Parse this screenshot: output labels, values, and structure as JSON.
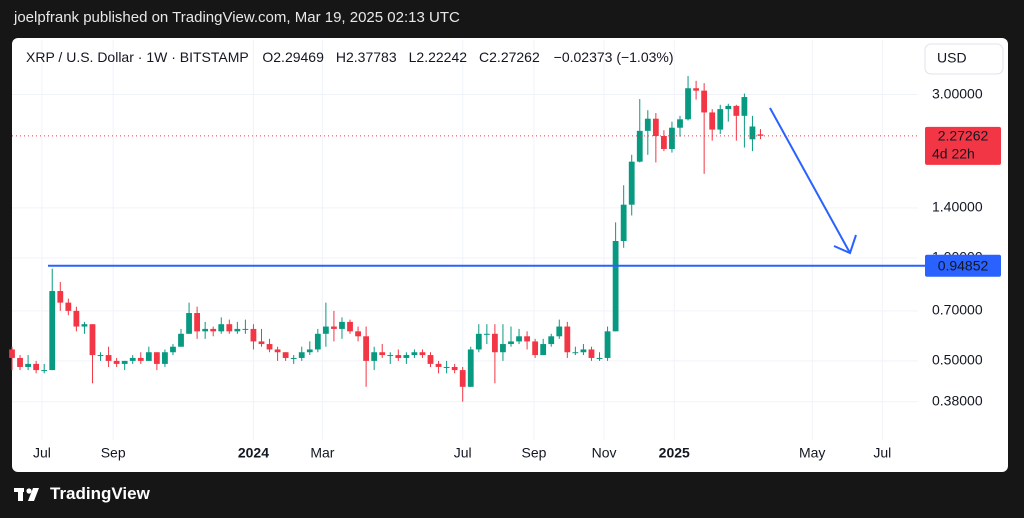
{
  "header": {
    "title": "joelpfrank published on TradingView.com, Mar 19, 2025 02:13 UTC"
  },
  "footer": {
    "brand": "TradingView"
  },
  "chart_data": {
    "type": "candlestick",
    "symbol": "XRP / U.S. Dollar · 1W · BITSTAMP",
    "ohlc_labels": [
      "O",
      "H",
      "L",
      "C"
    ],
    "change": "−0.02373 (−1.03%)",
    "currency": "USD",
    "countdown": "4d 22h",
    "log_scale": true,
    "grid": true,
    "colors": {
      "up": "#089981",
      "down": "#f23645"
    },
    "hline": {
      "value": 0.94852,
      "color": "#2962ff"
    },
    "xlim": [
      "2023-06-05",
      "2025-08-01"
    ],
    "xticks": [
      {
        "value": "2023-07-01",
        "label": "Jul"
      },
      {
        "value": "2023-09-01",
        "label": "Sep"
      },
      {
        "value": "2024-01-01",
        "label": "2024"
      },
      {
        "value": "2024-03-01",
        "label": "Mar"
      },
      {
        "value": "2024-07-01",
        "label": "Jul"
      },
      {
        "value": "2024-09-01",
        "label": "Sep"
      },
      {
        "value": "2024-11-01",
        "label": "Nov"
      },
      {
        "value": "2025-01-01",
        "label": "2025"
      },
      {
        "value": "2025-05-01",
        "label": "May"
      },
      {
        "value": "2025-07-01",
        "label": "Jul"
      }
    ],
    "ylim": [
      0.24,
      4.33
    ],
    "yticks": [
      {
        "value": 3,
        "label": "3.00000"
      },
      {
        "value": 1.4,
        "label": "1.40000"
      },
      {
        "value": 1,
        "label": "1.00000"
      },
      {
        "value": 0.7,
        "label": "0.70000"
      },
      {
        "value": 0.5,
        "label": "0.50000"
      },
      {
        "value": 0.38,
        "label": "0.38000"
      }
    ],
    "x": [
      "2023-06-05",
      "2023-06-12",
      "2023-06-19",
      "2023-06-26",
      "2023-07-03",
      "2023-07-10",
      "2023-07-17",
      "2023-07-24",
      "2023-07-31",
      "2023-08-07",
      "2023-08-14",
      "2023-08-21",
      "2023-08-28",
      "2023-09-04",
      "2023-09-11",
      "2023-09-18",
      "2023-09-25",
      "2023-10-02",
      "2023-10-09",
      "2023-10-16",
      "2023-10-23",
      "2023-10-30",
      "2023-11-06",
      "2023-11-13",
      "2023-11-20",
      "2023-11-27",
      "2023-12-04",
      "2023-12-11",
      "2023-12-18",
      "2023-12-25",
      "2024-01-01",
      "2024-01-08",
      "2024-01-15",
      "2024-01-22",
      "2024-01-29",
      "2024-02-05",
      "2024-02-12",
      "2024-02-19",
      "2024-02-26",
      "2024-03-04",
      "2024-03-11",
      "2024-03-18",
      "2024-03-25",
      "2024-04-01",
      "2024-04-08",
      "2024-04-15",
      "2024-04-22",
      "2024-04-29",
      "2024-05-06",
      "2024-05-13",
      "2024-05-20",
      "2024-05-27",
      "2024-06-03",
      "2024-06-10",
      "2024-06-17",
      "2024-06-24",
      "2024-07-01",
      "2024-07-08",
      "2024-07-15",
      "2024-07-22",
      "2024-07-29",
      "2024-08-05",
      "2024-08-12",
      "2024-08-19",
      "2024-08-26",
      "2024-09-02",
      "2024-09-09",
      "2024-09-16",
      "2024-09-23",
      "2024-09-30",
      "2024-10-07",
      "2024-10-14",
      "2024-10-21",
      "2024-10-28",
      "2024-11-04",
      "2024-11-11",
      "2024-11-18",
      "2024-11-25",
      "2024-12-02",
      "2024-12-09",
      "2024-12-16",
      "2024-12-23",
      "2024-12-30",
      "2025-01-06",
      "2025-01-13",
      "2025-01-20",
      "2025-01-27",
      "2025-02-03",
      "2025-02-10",
      "2025-02-17",
      "2025-02-24",
      "2025-03-03",
      "2025-03-10",
      "2025-03-17"
    ],
    "candles": [
      [
        0.54,
        0.55,
        0.47,
        0.51
      ],
      [
        0.51,
        0.52,
        0.47,
        0.48
      ],
      [
        0.48,
        0.52,
        0.47,
        0.49
      ],
      [
        0.49,
        0.5,
        0.46,
        0.47
      ],
      [
        0.47,
        0.49,
        0.46,
        0.47
      ],
      [
        0.47,
        0.93,
        0.47,
        0.8
      ],
      [
        0.8,
        0.85,
        0.7,
        0.74
      ],
      [
        0.74,
        0.76,
        0.68,
        0.7
      ],
      [
        0.7,
        0.72,
        0.61,
        0.63
      ],
      [
        0.63,
        0.65,
        0.6,
        0.64
      ],
      [
        0.64,
        0.64,
        0.43,
        0.52
      ],
      [
        0.52,
        0.53,
        0.5,
        0.52
      ],
      [
        0.52,
        0.55,
        0.48,
        0.5
      ],
      [
        0.5,
        0.51,
        0.48,
        0.49
      ],
      [
        0.49,
        0.5,
        0.47,
        0.5
      ],
      [
        0.5,
        0.52,
        0.49,
        0.51
      ],
      [
        0.51,
        0.53,
        0.49,
        0.5
      ],
      [
        0.5,
        0.55,
        0.5,
        0.53
      ],
      [
        0.53,
        0.53,
        0.47,
        0.49
      ],
      [
        0.49,
        0.54,
        0.48,
        0.53
      ],
      [
        0.53,
        0.56,
        0.52,
        0.55
      ],
      [
        0.55,
        0.62,
        0.55,
        0.6
      ],
      [
        0.6,
        0.74,
        0.6,
        0.69
      ],
      [
        0.69,
        0.72,
        0.58,
        0.61
      ],
      [
        0.61,
        0.65,
        0.58,
        0.62
      ],
      [
        0.62,
        0.63,
        0.59,
        0.61
      ],
      [
        0.61,
        0.67,
        0.6,
        0.64
      ],
      [
        0.64,
        0.66,
        0.6,
        0.61
      ],
      [
        0.61,
        0.65,
        0.6,
        0.62
      ],
      [
        0.62,
        0.66,
        0.6,
        0.62
      ],
      [
        0.62,
        0.64,
        0.54,
        0.57
      ],
      [
        0.57,
        0.62,
        0.55,
        0.56
      ],
      [
        0.56,
        0.58,
        0.53,
        0.54
      ],
      [
        0.54,
        0.55,
        0.5,
        0.53
      ],
      [
        0.53,
        0.53,
        0.5,
        0.51
      ],
      [
        0.51,
        0.52,
        0.49,
        0.51
      ],
      [
        0.51,
        0.55,
        0.5,
        0.53
      ],
      [
        0.53,
        0.57,
        0.52,
        0.54
      ],
      [
        0.54,
        0.62,
        0.53,
        0.6
      ],
      [
        0.6,
        0.74,
        0.55,
        0.63
      ],
      [
        0.63,
        0.7,
        0.57,
        0.62
      ],
      [
        0.62,
        0.67,
        0.58,
        0.65
      ],
      [
        0.65,
        0.66,
        0.6,
        0.61
      ],
      [
        0.61,
        0.63,
        0.57,
        0.59
      ],
      [
        0.59,
        0.63,
        0.42,
        0.5
      ],
      [
        0.5,
        0.55,
        0.47,
        0.53
      ],
      [
        0.53,
        0.56,
        0.51,
        0.52
      ],
      [
        0.52,
        0.53,
        0.49,
        0.52
      ],
      [
        0.52,
        0.54,
        0.5,
        0.51
      ],
      [
        0.51,
        0.53,
        0.49,
        0.52
      ],
      [
        0.52,
        0.54,
        0.51,
        0.53
      ],
      [
        0.53,
        0.54,
        0.51,
        0.52
      ],
      [
        0.52,
        0.53,
        0.48,
        0.49
      ],
      [
        0.49,
        0.5,
        0.46,
        0.48
      ],
      [
        0.48,
        0.5,
        0.46,
        0.48
      ],
      [
        0.48,
        0.49,
        0.46,
        0.47
      ],
      [
        0.47,
        0.48,
        0.38,
        0.42
      ],
      [
        0.42,
        0.55,
        0.42,
        0.54
      ],
      [
        0.54,
        0.64,
        0.53,
        0.6
      ],
      [
        0.6,
        0.64,
        0.56,
        0.6
      ],
      [
        0.6,
        0.64,
        0.43,
        0.53
      ],
      [
        0.53,
        0.64,
        0.5,
        0.56
      ],
      [
        0.56,
        0.63,
        0.55,
        0.57
      ],
      [
        0.57,
        0.62,
        0.56,
        0.59
      ],
      [
        0.59,
        0.61,
        0.54,
        0.57
      ],
      [
        0.57,
        0.58,
        0.51,
        0.52
      ],
      [
        0.52,
        0.58,
        0.52,
        0.56
      ],
      [
        0.56,
        0.6,
        0.55,
        0.59
      ],
      [
        0.59,
        0.66,
        0.58,
        0.63
      ],
      [
        0.63,
        0.65,
        0.51,
        0.53
      ],
      [
        0.53,
        0.55,
        0.52,
        0.53
      ],
      [
        0.53,
        0.56,
        0.52,
        0.54
      ],
      [
        0.54,
        0.55,
        0.5,
        0.51
      ],
      [
        0.51,
        0.53,
        0.5,
        0.51
      ],
      [
        0.51,
        0.63,
        0.5,
        0.61
      ],
      [
        0.61,
        1.27,
        0.61,
        1.12
      ],
      [
        1.12,
        1.63,
        1.07,
        1.43
      ],
      [
        1.43,
        2.0,
        1.33,
        1.91
      ],
      [
        1.91,
        2.91,
        1.9,
        2.35
      ],
      [
        2.35,
        2.7,
        2.0,
        2.55
      ],
      [
        2.55,
        2.65,
        1.9,
        2.27
      ],
      [
        2.27,
        2.36,
        2.05,
        2.08
      ],
      [
        2.08,
        2.5,
        2.03,
        2.4
      ],
      [
        2.4,
        2.6,
        2.26,
        2.54
      ],
      [
        2.54,
        3.4,
        2.52,
        3.13
      ],
      [
        3.13,
        3.29,
        2.9,
        3.08
      ],
      [
        3.08,
        3.24,
        1.76,
        2.66
      ],
      [
        2.66,
        2.72,
        2.2,
        2.37
      ],
      [
        2.37,
        2.8,
        2.3,
        2.72
      ],
      [
        2.72,
        2.82,
        2.5,
        2.78
      ],
      [
        2.78,
        2.8,
        2.2,
        2.6
      ],
      [
        2.6,
        3.02,
        2.1,
        2.95
      ],
      [
        2.22,
        2.6,
        2.05,
        2.42
      ],
      [
        2.29469,
        2.37783,
        2.22242,
        2.27262
      ]
    ]
  }
}
